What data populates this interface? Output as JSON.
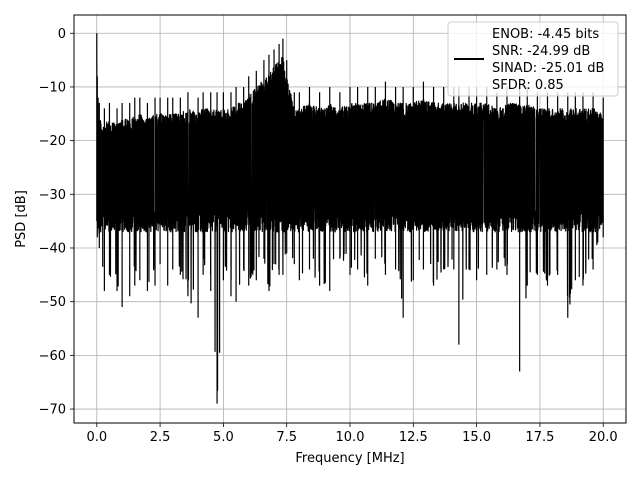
{
  "chart_data": {
    "type": "line",
    "title": "",
    "xlabel": "Frequency [MHz]",
    "ylabel": "PSD [dB]",
    "xlim": [
      -0.9,
      20.9
    ],
    "ylim": [
      -72.6,
      3.4
    ],
    "xticks": [
      0.0,
      2.5,
      5.0,
      7.5,
      10.0,
      12.5,
      15.0,
      17.5,
      20.0
    ],
    "xtick_labels": [
      "0.0",
      "2.5",
      "5.0",
      "7.5",
      "10.0",
      "12.5",
      "15.0",
      "17.5",
      "20.0"
    ],
    "yticks": [
      0,
      -10,
      -20,
      -30,
      -40,
      -50,
      -60,
      -70
    ],
    "ytick_labels": [
      "0",
      "−10",
      "−20",
      "−30",
      "−40",
      "−50",
      "−60",
      "−70"
    ],
    "grid": true,
    "legend_position": "top-right",
    "series_color": "#000000",
    "series": [
      {
        "name": "ENOB: -4.45 bits\nSNR: -24.99 dB\nSINAD: -25.01 dB\nSFDR: 0.85",
        "legend_lines": [
          "ENOB: -4.45 bits",
          "SNR: -24.99 dB",
          "SINAD: -25.01 dB",
          "SFDR: 0.85"
        ],
        "description": "Dense noise power spectrum; band roughly -13 to -36 dB with sharp dips and peaks",
        "x": [
          0.0,
          0.02,
          0.05,
          0.1,
          0.3,
          0.5,
          0.8,
          1.0,
          1.3,
          1.5,
          1.7,
          2.0,
          2.3,
          2.5,
          2.8,
          3.0,
          3.3,
          3.6,
          4.0,
          4.2,
          4.5,
          4.75,
          5.0,
          5.3,
          5.5,
          5.8,
          6.0,
          6.3,
          6.6,
          6.8,
          7.0,
          7.2,
          7.35,
          7.5,
          7.8,
          8.0,
          8.4,
          8.8,
          9.2,
          9.6,
          10.0,
          10.3,
          10.7,
          11.0,
          11.4,
          11.8,
          12.1,
          12.5,
          12.9,
          13.3,
          13.7,
          14.1,
          14.3,
          14.7,
          15.0,
          15.4,
          15.8,
          16.2,
          16.7,
          17.0,
          17.4,
          17.8,
          18.2,
          18.6,
          18.9,
          19.2,
          19.6,
          20.0
        ],
        "y_high": [
          0,
          -8,
          -12,
          -13,
          -14,
          -13,
          -14,
          -13,
          -13,
          -12,
          -12,
          -13,
          -12,
          -12,
          -12,
          -12,
          -12,
          -11,
          -12,
          -11,
          -11,
          -11,
          -11,
          -11,
          -10,
          -10,
          -8,
          -7,
          -5,
          -4,
          -3,
          -2,
          -1,
          -5,
          -11,
          -11,
          -10,
          -11,
          -10,
          -11,
          -10,
          -10,
          -10,
          -10,
          -9,
          -10,
          -10,
          -10,
          -9,
          -10,
          -10,
          -10,
          -10,
          -10,
          -10,
          -10,
          -11,
          -10,
          -10,
          -10,
          -11,
          -11,
          -11,
          -11,
          -11,
          -11,
          -11,
          -12
        ],
        "y_low": [
          -35,
          -38,
          -36,
          -40,
          -48,
          -45,
          -48,
          -51,
          -49,
          -47,
          -46,
          -48,
          -47,
          -43,
          -47,
          -44,
          -45,
          -49,
          -53,
          -45,
          -48,
          -69,
          -46,
          -49,
          -50,
          -44,
          -47,
          -46,
          -42,
          -48,
          -43,
          -45,
          -45,
          -41,
          -43,
          -46,
          -44,
          -47,
          -48,
          -42,
          -45,
          -44,
          -47,
          -42,
          -45,
          -44,
          -53,
          -46,
          -44,
          -47,
          -44,
          -44,
          -58,
          -44,
          -46,
          -45,
          -44,
          -45,
          -63,
          -47,
          -45,
          -47,
          -45,
          -53,
          -46,
          -47,
          -44,
          -38
        ]
      }
    ]
  }
}
